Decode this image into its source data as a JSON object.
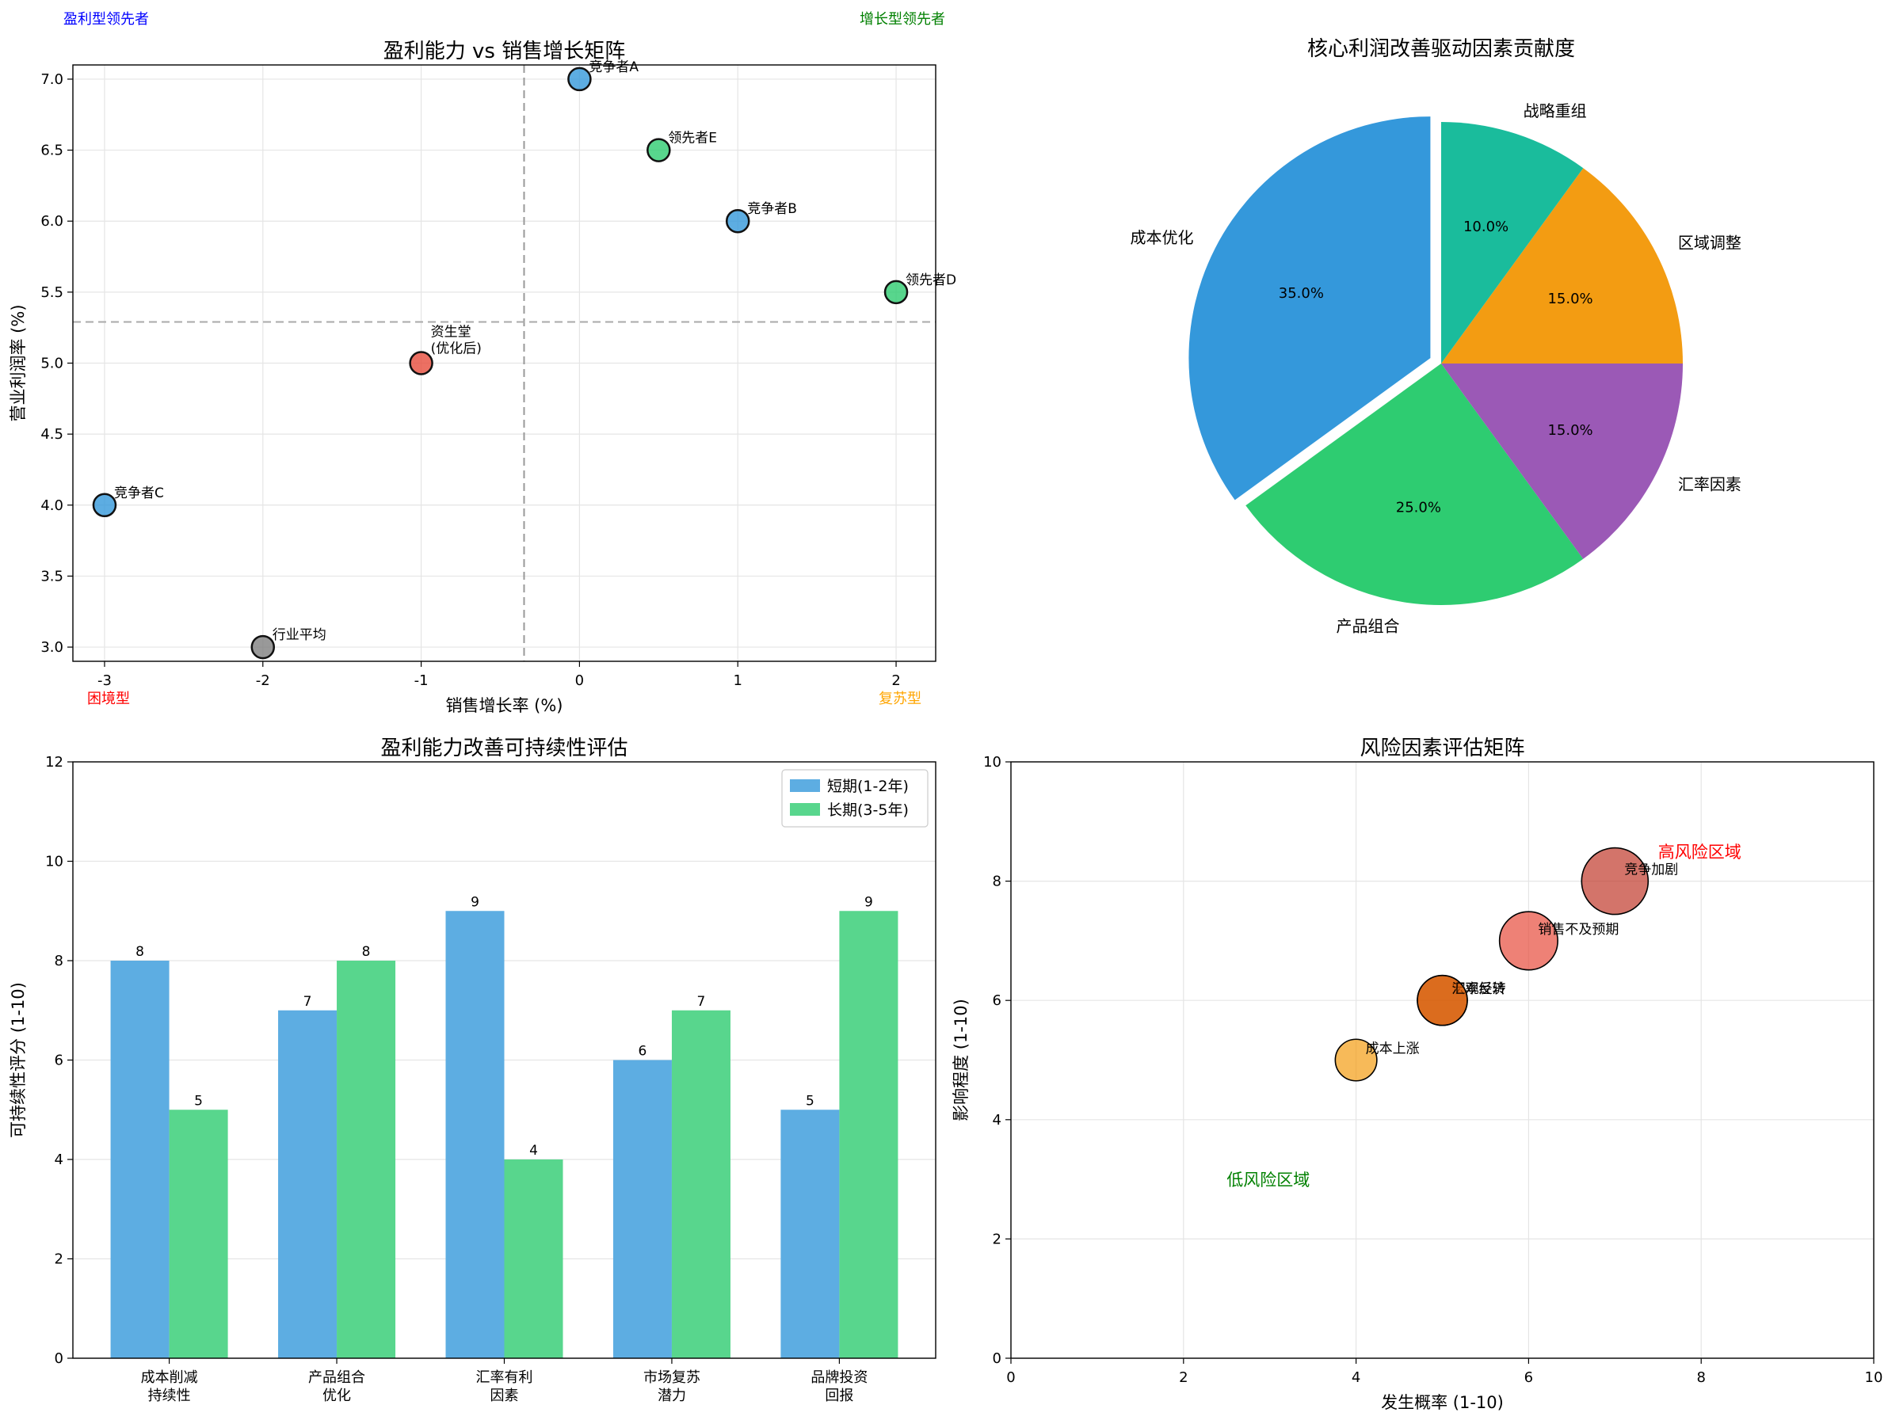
{
  "chart_data": [
    {
      "type": "scatter",
      "title": "盈利能力 vs 销售增长矩阵",
      "xlabel": "销售增长率 (%)",
      "ylabel": "营业利润率 (%)",
      "xlim": [
        -3.2,
        2.25
      ],
      "ylim": [
        2.9,
        7.1
      ],
      "xticks": [
        -3,
        -2,
        -1,
        0,
        1,
        2
      ],
      "yticks": [
        3.0,
        3.5,
        4.0,
        4.5,
        5.0,
        5.5,
        6.0,
        6.5,
        7.0
      ],
      "grid": true,
      "ref_lines": {
        "x": -0.35,
        "y": 5.29
      },
      "points": [
        {
          "label": "资生堂\n(优化后)",
          "x": -1,
          "y": 5.0,
          "color": "#e74c3c"
        },
        {
          "label": "竞争者A",
          "x": 0,
          "y": 7.0,
          "color": "#3498db"
        },
        {
          "label": "竞争者B",
          "x": 1,
          "y": 6.0,
          "color": "#3498db"
        },
        {
          "label": "竞争者C",
          "x": -3,
          "y": 4.0,
          "color": "#3498db"
        },
        {
          "label": "领先者D",
          "x": 2,
          "y": 5.5,
          "color": "#2ecc71"
        },
        {
          "label": "领先者E",
          "x": 0.5,
          "y": 6.5,
          "color": "#2ecc71"
        },
        {
          "label": "行业平均",
          "x": -2,
          "y": 3.0,
          "color": "#7f7f7f"
        }
      ],
      "quadrant_labels": [
        {
          "text": "盈利型领先者",
          "color": "#0000ff",
          "pos": "top-left"
        },
        {
          "text": "增长型领先者",
          "color": "#008000",
          "pos": "top-right"
        },
        {
          "text": "困境型",
          "color": "#ff0000",
          "pos": "bottom-left"
        },
        {
          "text": "复苏型",
          "color": "#ffa500",
          "pos": "bottom-right"
        }
      ]
    },
    {
      "type": "pie",
      "title": "核心利润改善驱动因素贡献度",
      "slices": [
        {
          "label": "成本优化",
          "value": 35,
          "pct": "35.0%",
          "color": "#3498db",
          "explode": true
        },
        {
          "label": "产品组合",
          "value": 25,
          "pct": "25.0%",
          "color": "#2ecc71",
          "explode": false
        },
        {
          "label": "汇率因素",
          "value": 15,
          "pct": "15.0%",
          "color": "#9b59b6",
          "explode": false
        },
        {
          "label": "区域调整",
          "value": 15,
          "pct": "15.0%",
          "color": "#f39c12",
          "explode": false
        },
        {
          "label": "战略重组",
          "value": 10,
          "pct": "10.0%",
          "color": "#1abc9c",
          "explode": false
        }
      ]
    },
    {
      "type": "bar",
      "title": "盈利能力改善可持续性评估",
      "ylabel": "可持续性评分 (1-10)",
      "ylim": [
        0,
        12
      ],
      "yticks": [
        0,
        2,
        4,
        6,
        8,
        10,
        12
      ],
      "categories": [
        "成本削减\n持续性",
        "产品组合\n优化",
        "汇率有利\n因素",
        "市场复苏\n潜力",
        "品牌投资\n回报"
      ],
      "series": [
        {
          "name": "短期(1-2年)",
          "values": [
            8,
            7,
            9,
            6,
            5
          ],
          "color": "#5dade2"
        },
        {
          "name": "长期(3-5年)",
          "values": [
            5,
            8,
            4,
            7,
            9
          ],
          "color": "#58d68d"
        }
      ],
      "legend": "top-right"
    },
    {
      "type": "scatter",
      "title": "风险因素评估矩阵",
      "xlabel": "发生概率 (1-10)",
      "ylabel": "影响程度 (1-10)",
      "xlim": [
        0,
        10
      ],
      "ylim": [
        0,
        10
      ],
      "xticks": [
        0,
        2,
        4,
        6,
        8,
        10
      ],
      "yticks": [
        0,
        2,
        4,
        6,
        8,
        10
      ],
      "grid": true,
      "points": [
        {
          "label": "竞争加剧",
          "x": 7,
          "y": 8,
          "size": 56,
          "color": "#c0392b"
        },
        {
          "label": "销售不及预期",
          "x": 6,
          "y": 7,
          "size": 49,
          "color": "#e74c3c"
        },
        {
          "label": "宏观经济",
          "x": 5,
          "y": 6,
          "size": 42,
          "color": "#e67e22"
        },
        {
          "label": "汇率反转",
          "x": 5,
          "y": 6,
          "size": 42,
          "color": "#d35400"
        },
        {
          "label": "成本上涨",
          "x": 4,
          "y": 5,
          "size": 35,
          "color": "#f39c12"
        }
      ],
      "zone_labels": [
        {
          "text": "高风险区域",
          "x": 7.5,
          "y": 8.5,
          "color": "#ff0000"
        },
        {
          "text": "低风险区域",
          "x": 2.5,
          "y": 3.0,
          "color": "#008000"
        }
      ]
    }
  ]
}
